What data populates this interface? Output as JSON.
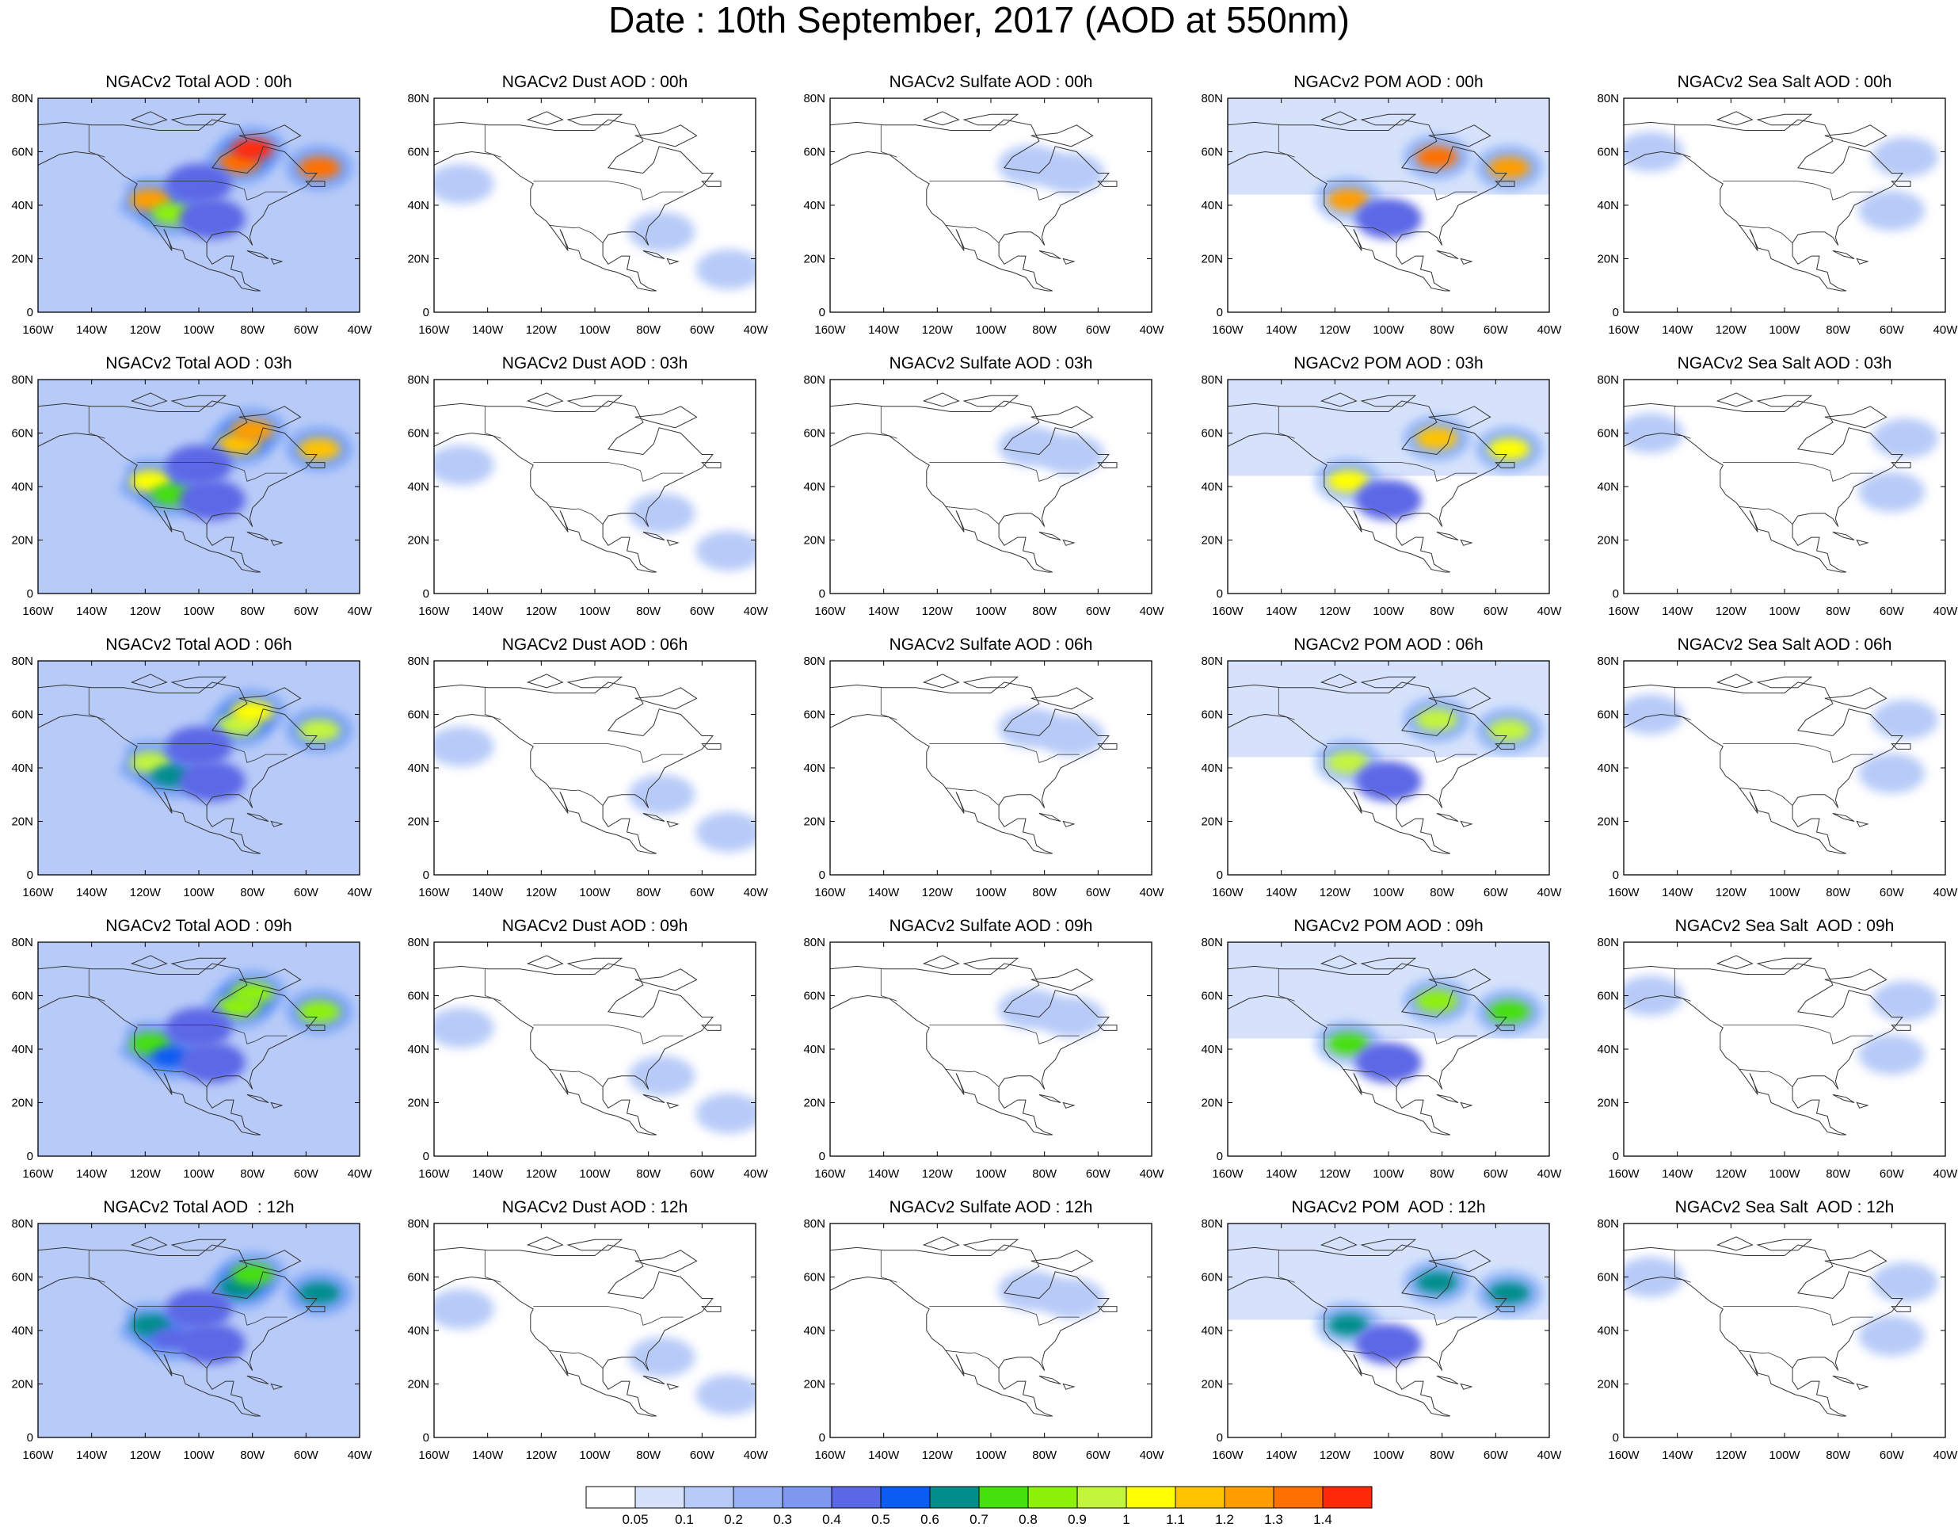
{
  "figure": {
    "title": "Date : 10th September, 2017 (AOD at 550nm)"
  },
  "axes": {
    "x_tick_labels": [
      "160W",
      "140W",
      "120W",
      "100W",
      "80W",
      "60W",
      "40W"
    ],
    "y_tick_labels": [
      "80N",
      "60N",
      "40N",
      "20N",
      "0"
    ],
    "lon_range": [
      -160,
      -40
    ],
    "lat_range": [
      0,
      80
    ]
  },
  "panels": [
    [
      "NGACv2 Total AOD : 00h",
      "NGACv2 Dust AOD : 00h",
      "NGACv2 Sulfate AOD : 00h",
      "NGACv2 POM AOD : 00h",
      "NGACv2 Sea Salt AOD : 00h"
    ],
    [
      "NGACv2 Total AOD : 03h",
      "NGACv2 Dust AOD : 03h",
      "NGACv2 Sulfate AOD : 03h",
      "NGACv2 POM AOD : 03h",
      "NGACv2 Sea Salt AOD : 03h"
    ],
    [
      "NGACv2 Total AOD : 06h",
      "NGACv2 Dust AOD : 06h",
      "NGACv2 Sulfate AOD : 06h",
      "NGACv2 POM AOD : 06h",
      "NGACv2 Sea Salt AOD : 06h"
    ],
    [
      "NGACv2 Total AOD : 09h",
      "NGACv2 Dust AOD : 09h",
      "NGACv2 Sulfate AOD : 09h",
      "NGACv2 POM AOD : 09h",
      "NGACv2 Sea Salt  AOD : 09h"
    ],
    [
      "NGACv2 Total AOD  : 12h",
      "NGACv2 Dust AOD : 12h",
      "NGACv2 Sulfate AOD : 12h",
      "NGACv2 POM  AOD : 12h",
      "NGACv2 Sea Salt  AOD : 12h"
    ]
  ],
  "colorbar": {
    "labels": [
      "0.05",
      "0.1",
      "0.2",
      "0.3",
      "0.4",
      "0.5",
      "0.6",
      "0.7",
      "0.8",
      "0.9",
      "1",
      "1.1",
      "1.2",
      "1.3",
      "1.4"
    ],
    "colors": [
      "#ffffff",
      "#d6e2fb",
      "#b8cbf8",
      "#99b2f4",
      "#7d98ee",
      "#5b68e6",
      "#0a5cf3",
      "#008d8c",
      "#45e00e",
      "#8df20a",
      "#c3f53c",
      "#ffff00",
      "#ffc300",
      "#ff9d00",
      "#ff7000",
      "#ff2a0a"
    ]
  },
  "fields": {
    "total": [
      {
        "lon": -118,
        "lat": 42,
        "level": 1.2
      },
      {
        "lon": -110,
        "lat": 37,
        "level": 0.8
      },
      {
        "lon": -85,
        "lat": 56,
        "level": 1.3
      },
      {
        "lon": -80,
        "lat": 61,
        "level": 1.4
      },
      {
        "lon": -55,
        "lat": 54,
        "level": 1.3
      },
      {
        "lon": -100,
        "lat": 48,
        "level": 0.4
      },
      {
        "lon": -95,
        "lat": 35,
        "level": 0.4
      },
      {
        "lon": -140,
        "lat": 45,
        "level": 0.1
      }
    ],
    "dust": [
      {
        "lon": -150,
        "lat": 48,
        "level": 0.1
      },
      {
        "lon": -75,
        "lat": 30,
        "level": 0.1
      },
      {
        "lon": -50,
        "lat": 16,
        "level": 0.1
      }
    ],
    "sulfate": [
      {
        "lon": -85,
        "lat": 55,
        "level": 0.1
      },
      {
        "lon": -70,
        "lat": 52,
        "level": 0.1
      }
    ],
    "pom": [
      {
        "lon": -115,
        "lat": 42,
        "level": 1.2
      },
      {
        "lon": -82,
        "lat": 58,
        "level": 1.3
      },
      {
        "lon": -55,
        "lat": 54,
        "level": 1.2
      },
      {
        "lon": -100,
        "lat": 35,
        "level": 0.4
      }
    ],
    "seasalt": [
      {
        "lon": -150,
        "lat": 60,
        "level": 0.1
      },
      {
        "lon": -60,
        "lat": 38,
        "level": 0.1
      },
      {
        "lon": -55,
        "lat": 58,
        "level": 0.1
      }
    ]
  }
}
